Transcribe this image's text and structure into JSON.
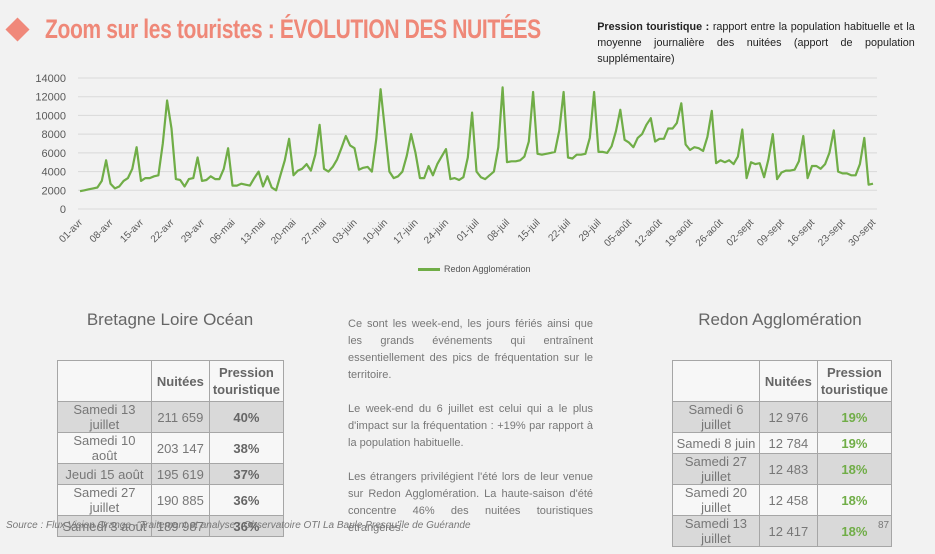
{
  "header": {
    "title": "Zoom sur les touristes : ÉVOLUTION DES NUITÉES",
    "definition_term": "Pression touristique :",
    "definition_text": "rapport entre la population habituelle et la moyenne journalière des nuitées (apport de population supplémentaire)"
  },
  "chart_data": {
    "type": "line",
    "title": "",
    "xlabel": "",
    "ylabel": "",
    "ylim": [
      0,
      14000
    ],
    "yticks": [
      0,
      2000,
      4000,
      6000,
      8000,
      10000,
      12000,
      14000
    ],
    "grid": true,
    "legend": "bottom-center",
    "xtick_labels": [
      "01-avr",
      "08-avr",
      "15-avr",
      "22-avr",
      "29-avr",
      "06-mai",
      "13-mai",
      "20-mai",
      "27-mai",
      "03-juin",
      "10-juin",
      "17-juin",
      "24-juin",
      "01-juil",
      "08-juil",
      "15-juil",
      "22-juil",
      "29-juil",
      "05-août",
      "12-août",
      "19-août",
      "26-août",
      "02-sept",
      "09-sept",
      "16-sept",
      "23-sept",
      "30-sept"
    ],
    "series": [
      {
        "name": "Redon Agglomération",
        "color": "#70ad47",
        "values": [
          1900,
          2000,
          2100,
          2200,
          2300,
          3000,
          5200,
          2700,
          2200,
          2400,
          3000,
          3300,
          4300,
          6600,
          3000,
          3300,
          3300,
          3500,
          3600,
          7000,
          11600,
          8600,
          3200,
          3100,
          2400,
          3200,
          3300,
          5500,
          3000,
          3100,
          3500,
          3200,
          3200,
          4300,
          6500,
          2500,
          2500,
          2700,
          2600,
          2500,
          3300,
          4000,
          2400,
          3500,
          2300,
          2000,
          3600,
          5200,
          7500,
          3600,
          4100,
          4300,
          4800,
          4100,
          5800,
          9000,
          4300,
          4000,
          4500,
          5300,
          6500,
          7800,
          6800,
          6500,
          4200,
          4400,
          4500,
          4000,
          7500,
          12800,
          8400,
          4000,
          3300,
          3500,
          4000,
          5700,
          8000,
          6000,
          3300,
          3300,
          4600,
          3600,
          4800,
          5600,
          6400,
          3200,
          3300,
          3100,
          3400,
          5500,
          10300,
          4000,
          3400,
          3200,
          3600,
          4000,
          6600,
          13000,
          5000,
          5100,
          5100,
          5200,
          5600,
          7200,
          12500,
          5900,
          5800,
          5900,
          6000,
          6100,
          8400,
          12500,
          5500,
          5400,
          5800,
          5800,
          5900,
          7600,
          12500,
          6100,
          6100,
          6000,
          6700,
          8300,
          10600,
          7400,
          7100,
          6600,
          7600,
          8000,
          9000,
          9700,
          7200,
          7500,
          7500,
          8600,
          8600,
          9200,
          11300,
          6900,
          6300,
          6600,
          6500,
          6200,
          7700,
          10500,
          4900,
          5200,
          5000,
          5200,
          4800,
          5600,
          8500,
          3300,
          5000,
          4800,
          4900,
          3400,
          5300,
          8000,
          3200,
          3900,
          4100,
          4100,
          4200,
          5100,
          7800,
          3300,
          4600,
          4600,
          4300,
          4800,
          6000,
          8400,
          4000,
          3800,
          3800,
          3600,
          3600,
          4800,
          7600,
          2600,
          2700
        ]
      }
    ]
  },
  "table_left": {
    "title": "Bretagne Loire Océan",
    "headers": [
      "",
      "Nuitées",
      "Pression touristique"
    ],
    "rows": [
      {
        "date": "Samedi 13 juillet",
        "nuitees": "211 659",
        "pression": "40%"
      },
      {
        "date": "Samedi 10 août",
        "nuitees": "203 147",
        "pression": "38%"
      },
      {
        "date": "Jeudi 15 août",
        "nuitees": "195 619",
        "pression": "37%"
      },
      {
        "date": "Samedi 27 juillet",
        "nuitees": "190 885",
        "pression": "36%"
      },
      {
        "date": "Samedi 3 août",
        "nuitees": "189 987",
        "pression": "36%"
      }
    ]
  },
  "table_right": {
    "title": "Redon Agglomération",
    "headers": [
      "",
      "Nuitées",
      "Pression touristique"
    ],
    "rows": [
      {
        "date": "Samedi 6 juillet",
        "nuitees": "12 976",
        "pression": "19%"
      },
      {
        "date": "Samedi 8 juin",
        "nuitees": "12 784",
        "pression": "19%"
      },
      {
        "date": "Samedi 27 juillet",
        "nuitees": "12 483",
        "pression": "18%"
      },
      {
        "date": "Samedi 20 juillet",
        "nuitees": "12 458",
        "pression": "18%"
      },
      {
        "date": "Samedi 13 juillet",
        "nuitees": "12 417",
        "pression": "18%"
      }
    ]
  },
  "commentary": [
    "Ce sont les week-end, les jours fériés ainsi que les grands événements qui entraînent essentiellement des pics de fréquentation sur le territoire.",
    "Le week-end du 6 juillet est celui qui a le plus d'impact sur la fréquentation : +19% par rapport à la population habituelle.",
    "Les étrangers privilégient l'été lors de leur venue sur Redon Agglomération. La haute-saison d'été concentre 46% des nuitées touristiques étrangères."
  ],
  "footer": {
    "source": "Source : Flux Vision Orange - Traitement et analyse : Observatoire OTI La Baule Presqu'île de Guérande",
    "page_number": "87"
  }
}
